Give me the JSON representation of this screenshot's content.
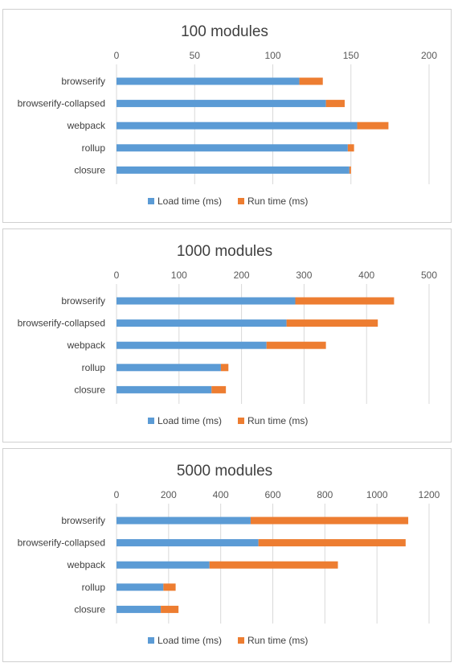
{
  "colors": {
    "load": "#5b9bd5",
    "run": "#ed7d31"
  },
  "chart_data": [
    {
      "type": "bar",
      "orientation": "horizontal",
      "stacked": true,
      "title": "100 modules",
      "categories": [
        "browserify",
        "browserify-collapsed",
        "webpack",
        "rollup",
        "closure"
      ],
      "xlim": [
        0,
        200
      ],
      "xticks": [
        "0",
        "50",
        "100",
        "150",
        "200"
      ],
      "grid": true,
      "legend_position": "bottom",
      "series": [
        {
          "name": "Load time (ms)",
          "values": [
            117,
            134,
            154,
            148,
            149
          ]
        },
        {
          "name": "Run time (ms)",
          "values": [
            15,
            12,
            20,
            4,
            1
          ]
        }
      ]
    },
    {
      "type": "bar",
      "orientation": "horizontal",
      "stacked": true,
      "title": "1000 modules",
      "categories": [
        "browserify",
        "browserify-collapsed",
        "webpack",
        "rollup",
        "closure"
      ],
      "xlim": [
        0,
        500
      ],
      "xticks": [
        "0",
        "100",
        "200",
        "300",
        "400",
        "500"
      ],
      "grid": true,
      "legend_position": "bottom",
      "series": [
        {
          "name": "Load time (ms)",
          "values": [
            286,
            272,
            240,
            167,
            152
          ]
        },
        {
          "name": "Run time (ms)",
          "values": [
            158,
            146,
            95,
            12,
            23
          ]
        }
      ]
    },
    {
      "type": "bar",
      "orientation": "horizontal",
      "stacked": true,
      "title": "5000 modules",
      "categories": [
        "browserify",
        "browserify-collapsed",
        "webpack",
        "rollup",
        "closure"
      ],
      "xlim": [
        0,
        1200
      ],
      "xticks": [
        "0",
        "200",
        "400",
        "600",
        "800",
        "1000",
        "1200"
      ],
      "grid": true,
      "legend_position": "bottom",
      "series": [
        {
          "name": "Load time (ms)",
          "values": [
            515,
            545,
            357,
            180,
            170
          ]
        },
        {
          "name": "Run time (ms)",
          "values": [
            605,
            565,
            493,
            47,
            68
          ]
        }
      ]
    }
  ]
}
